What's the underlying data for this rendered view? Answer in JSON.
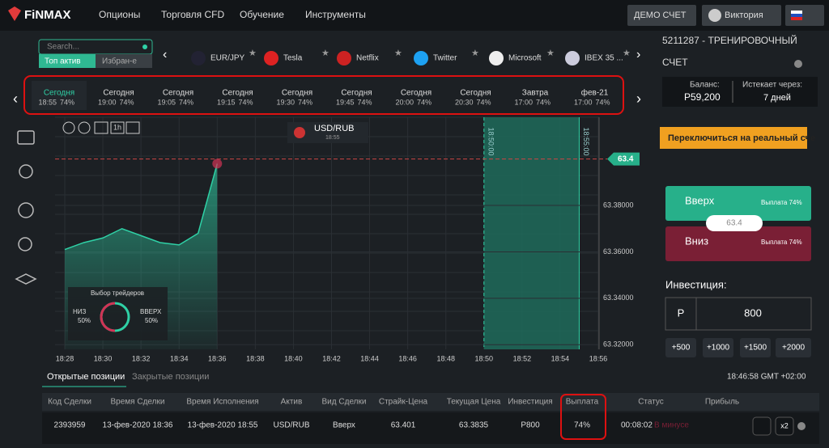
{
  "header": {
    "logo": "FiNMAX",
    "nav": [
      "Опционы",
      "Торговля CFD",
      "Обучение",
      "Инструменты"
    ],
    "demo": "ДЕМО СЧЕТ",
    "user": "Виктория"
  },
  "assets": {
    "search": "Search...",
    "tabs": [
      "Топ актив",
      "Избран-е"
    ],
    "items": [
      "EUR/JPY",
      "Tesla",
      "Netflix",
      "Twitter",
      "Microsoft",
      "IBEX 35 ..."
    ]
  },
  "expiries": [
    {
      "day": "Сегодня",
      "time": "18:55",
      "payout": "74%"
    },
    {
      "day": "Сегодня",
      "time": "19:00",
      "payout": "74%"
    },
    {
      "day": "Сегодня",
      "time": "19:05",
      "payout": "74%"
    },
    {
      "day": "Сегодня",
      "time": "19:15",
      "payout": "74%"
    },
    {
      "day": "Сегодня",
      "time": "19:30",
      "payout": "74%"
    },
    {
      "day": "Сегодня",
      "time": "19:45",
      "payout": "74%"
    },
    {
      "day": "Сегодня",
      "time": "20:00",
      "payout": "74%"
    },
    {
      "day": "Сегодня",
      "time": "20:30",
      "payout": "74%"
    },
    {
      "day": "Завтра",
      "time": "17:00",
      "payout": "74%"
    },
    {
      "day": "фев-21",
      "time": "17:00",
      "payout": "74%"
    }
  ],
  "toolbar": {
    "interval": "1h",
    "asset": "USD/RUB",
    "asset_time": "18:55"
  },
  "chart_data": {
    "type": "area",
    "color": "#2fd1a6",
    "categories": [
      "18:28",
      null,
      "18:30",
      null,
      "18:32",
      null,
      "18:34",
      null,
      "18:36",
      null,
      "18:38",
      null,
      "18:40",
      null,
      "18:42",
      null,
      "18:44",
      null,
      "18:46",
      null,
      "18:48",
      null,
      "18:50",
      null,
      "18:52",
      null,
      "18:54",
      null,
      "18:56"
    ],
    "values": [
      63.361,
      63.364,
      63.366,
      63.37,
      63.367,
      63.364,
      63.363,
      63.368,
      63.398,
      null,
      null,
      null,
      null,
      null,
      null,
      null,
      null,
      null,
      null,
      null,
      null,
      null,
      null,
      null,
      null,
      null,
      null,
      null,
      null
    ],
    "ylim": [
      63.318,
      63.418
    ],
    "yticks": [
      {
        "value": 63.32,
        "label": "63.32000"
      },
      {
        "value": 63.34,
        "label": "63.34000"
      },
      {
        "value": 63.36,
        "label": "63.36000"
      },
      {
        "value": 63.38,
        "label": "63.38000"
      }
    ],
    "current_price": 63.4,
    "expiry_marks": [
      "18:50:00",
      "18:55:00"
    ]
  },
  "traders": {
    "title": "Выбор трейдеров",
    "down": "НИЗ",
    "down_pct": "50%",
    "up": "ВВЕРХ",
    "up_pct": "50%"
  },
  "account": {
    "title": "5211287 - ТРЕНИРОВОЧНЫЙ",
    "title2": "СЧЕТ",
    "balance_label": "Баланс:",
    "balance": "P59,200",
    "expires_label": "Истекает через:",
    "expires": "7 дней",
    "switch": "Переключиться на реальный сче"
  },
  "trade": {
    "up": "Вверх",
    "down": "Вниз",
    "payout": "Выплата 74%",
    "current": "63.4",
    "invest_label": "Инвестиция:",
    "currency": "P",
    "amount": "800",
    "presets": [
      "+500",
      "+1000",
      "+1500",
      "+2000"
    ]
  },
  "positions": {
    "tabs": [
      "Открытые позиции",
      "Закрытые позиции"
    ],
    "clock": "18:46:58 GMT +02:00",
    "headers": [
      "Код Сделки",
      "Время Сделки",
      "Время Исполнения",
      "Актив",
      "Вид Сделки",
      "Страйк-Цена",
      "Текущая Цена",
      "Инвестиция",
      "Выплата",
      "Статус",
      "Прибыль"
    ],
    "row": [
      "2393959",
      "13-фев-2020 18:36",
      "13-фев-2020 18:55",
      "USD/RUB",
      "Вверх",
      "63.401",
      "63.3835",
      "P800",
      "74%",
      "00:08:02",
      "В минусе"
    ],
    "double": "x2"
  }
}
